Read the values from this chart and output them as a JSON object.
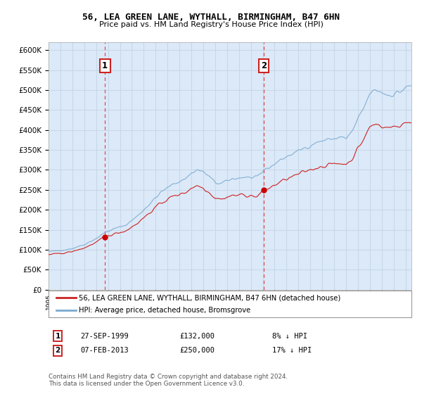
{
  "title": "56, LEA GREEN LANE, WYTHALL, BIRMINGHAM, B47 6HN",
  "subtitle": "Price paid vs. HM Land Registry's House Price Index (HPI)",
  "ylim": [
    0,
    620000
  ],
  "yticks": [
    0,
    50000,
    100000,
    150000,
    200000,
    250000,
    300000,
    350000,
    400000,
    450000,
    500000,
    550000,
    600000
  ],
  "ytick_labels": [
    "£0",
    "£50K",
    "£100K",
    "£150K",
    "£200K",
    "£250K",
    "£300K",
    "£350K",
    "£400K",
    "£450K",
    "£500K",
    "£550K",
    "£600K"
  ],
  "plot_bg": "#dce9f8",
  "grid_color": "#c8d8e8",
  "sale1_date": 1999.74,
  "sale1_price": 132000,
  "sale1_label": "1",
  "sale2_date": 2013.09,
  "sale2_price": 250000,
  "sale2_label": "2",
  "legend_line1": "56, LEA GREEN LANE, WYTHALL, BIRMINGHAM, B47 6HN (detached house)",
  "legend_line2": "HPI: Average price, detached house, Bromsgrove",
  "footnote1_date": "27-SEP-1999",
  "footnote1_price": "£132,000",
  "footnote1_hpi": "8% ↓ HPI",
  "footnote2_date": "07-FEB-2013",
  "footnote2_price": "£250,000",
  "footnote2_hpi": "17% ↓ HPI",
  "license_text": "Contains HM Land Registry data © Crown copyright and database right 2024.\nThis data is licensed under the Open Government Licence v3.0.",
  "red_line_color": "#cc2222",
  "blue_line_color": "#7aaad0",
  "marker_color": "#cc0000",
  "xmin": 1995.0,
  "xmax": 2025.5
}
